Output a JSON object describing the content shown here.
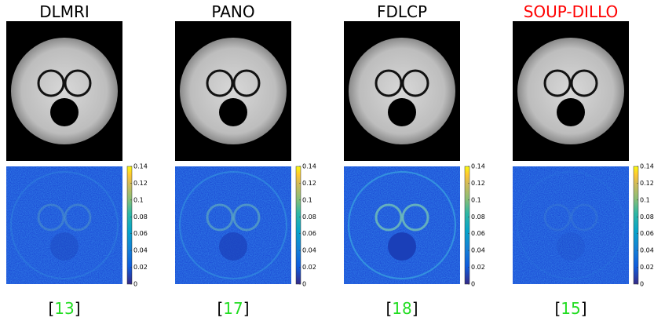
{
  "colorbar": {
    "lim": [
      0,
      0.14
    ],
    "ticks": [
      0,
      0.02,
      0.04,
      0.06,
      0.08,
      0.1,
      0.12,
      0.14
    ]
  },
  "panels": [
    {
      "title": "DLMRI",
      "title_color": "#000000",
      "cite_open": "[",
      "cite": "13",
      "cite_close": "]"
    },
    {
      "title": "PANO",
      "title_color": "#000000",
      "cite_open": "[",
      "cite": "17",
      "cite_close": "]"
    },
    {
      "title": "FDLCP",
      "title_color": "#000000",
      "cite_open": "[",
      "cite": "18",
      "cite_close": "]"
    },
    {
      "title": "SOUP-DILLO",
      "title_color": "#ff0000",
      "cite_open": "[",
      "cite": "15",
      "cite_close": "]"
    }
  ]
}
